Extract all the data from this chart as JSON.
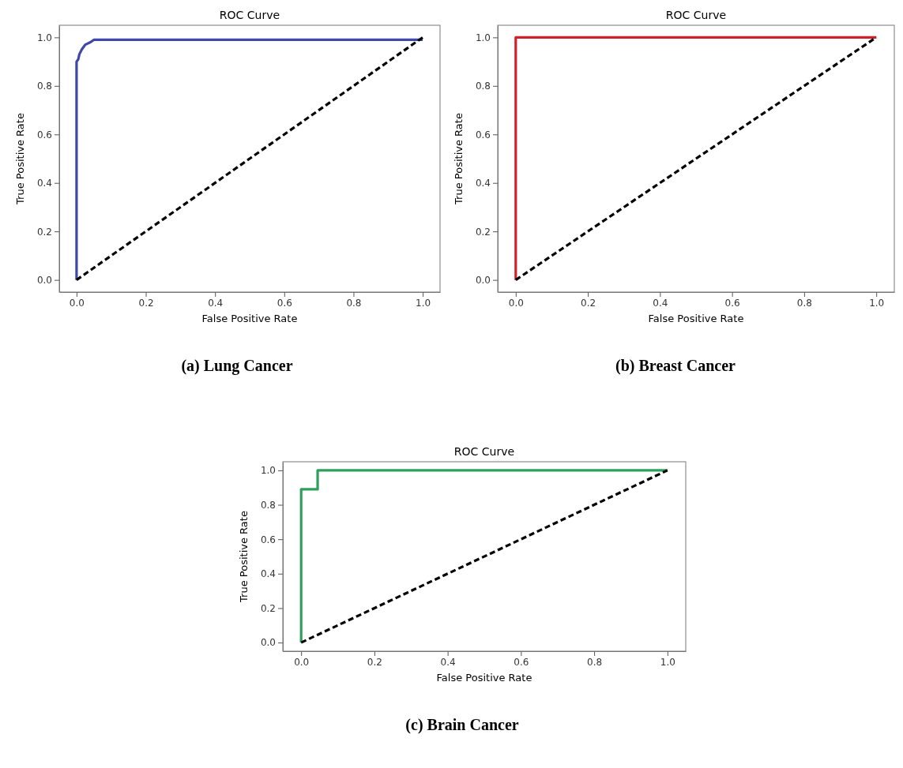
{
  "chart_data": [
    {
      "type": "line",
      "title": "ROC Curve",
      "xlabel": "False Positive Rate",
      "ylabel": "True Positive Rate",
      "xlim": [
        -0.05,
        1.05
      ],
      "ylim": [
        -0.05,
        1.05
      ],
      "xticks": [
        {
          "value": 0,
          "label": "0.0"
        },
        {
          "value": 0.2,
          "label": "0.2"
        },
        {
          "value": 0.4,
          "label": "0.4"
        },
        {
          "value": 0.6,
          "label": "0.6"
        },
        {
          "value": 0.8,
          "label": "0.8"
        },
        {
          "value": 1,
          "label": "1.0"
        }
      ],
      "yticks": [
        {
          "value": 0,
          "label": "0.0"
        },
        {
          "value": 0.2,
          "label": "0.2"
        },
        {
          "value": 0.4,
          "label": "0.4"
        },
        {
          "value": 0.6,
          "label": "0.6"
        },
        {
          "value": 0.8,
          "label": "0.8"
        },
        {
          "value": 1,
          "label": "1.0"
        }
      ],
      "grid": false,
      "annotations": [
        "(a) Lung Cancer"
      ],
      "series": [
        {
          "color": "#3f48a8",
          "line_style": "solid",
          "x": [
            0,
            0,
            0.005,
            0.008,
            0.015,
            0.025,
            0.04,
            0.05,
            1
          ],
          "values": [
            0,
            0.9,
            0.91,
            0.93,
            0.95,
            0.97,
            0.98,
            0.99,
            0.99
          ]
        },
        {
          "color": "#000000",
          "line_style": "dashed",
          "x": [
            0,
            1
          ],
          "values": [
            0,
            1
          ]
        }
      ]
    },
    {
      "type": "line",
      "title": "ROC Curve",
      "xlabel": "False Positive Rate",
      "ylabel": "True Positive Rate",
      "xlim": [
        -0.05,
        1.05
      ],
      "ylim": [
        -0.05,
        1.05
      ],
      "xticks": [
        {
          "value": 0,
          "label": "0.0"
        },
        {
          "value": 0.2,
          "label": "0.2"
        },
        {
          "value": 0.4,
          "label": "0.4"
        },
        {
          "value": 0.6,
          "label": "0.6"
        },
        {
          "value": 0.8,
          "label": "0.8"
        },
        {
          "value": 1,
          "label": "1.0"
        }
      ],
      "yticks": [
        {
          "value": 0,
          "label": "0.0"
        },
        {
          "value": 0.2,
          "label": "0.2"
        },
        {
          "value": 0.4,
          "label": "0.4"
        },
        {
          "value": 0.6,
          "label": "0.6"
        },
        {
          "value": 0.8,
          "label": "0.8"
        },
        {
          "value": 1,
          "label": "1.0"
        }
      ],
      "grid": false,
      "annotations": [
        "(b) Breast Cancer"
      ],
      "series": [
        {
          "color": "#d0202a",
          "line_style": "solid",
          "x": [
            0,
            0,
            1
          ],
          "values": [
            0,
            1,
            1
          ]
        },
        {
          "color": "#000000",
          "line_style": "dashed",
          "x": [
            0,
            1
          ],
          "values": [
            0,
            1
          ]
        }
      ]
    },
    {
      "type": "line",
      "title": "ROC Curve",
      "xlabel": "False Positive Rate",
      "ylabel": "True Positive Rate",
      "xlim": [
        -0.05,
        1.05
      ],
      "ylim": [
        -0.05,
        1.05
      ],
      "xticks": [
        {
          "value": 0,
          "label": "0.0"
        },
        {
          "value": 0.2,
          "label": "0.2"
        },
        {
          "value": 0.4,
          "label": "0.4"
        },
        {
          "value": 0.6,
          "label": "0.6"
        },
        {
          "value": 0.8,
          "label": "0.8"
        },
        {
          "value": 1,
          "label": "1.0"
        }
      ],
      "yticks": [
        {
          "value": 0,
          "label": "0.0"
        },
        {
          "value": 0.2,
          "label": "0.2"
        },
        {
          "value": 0.4,
          "label": "0.4"
        },
        {
          "value": 0.6,
          "label": "0.6"
        },
        {
          "value": 0.8,
          "label": "0.8"
        },
        {
          "value": 1,
          "label": "1.0"
        }
      ],
      "grid": false,
      "annotations": [
        "(c) Brain Cancer"
      ],
      "series": [
        {
          "color": "#2ca05a",
          "line_style": "solid",
          "x": [
            0,
            0,
            0.045,
            0.045,
            1
          ],
          "values": [
            0,
            0.89,
            0.89,
            1,
            1
          ]
        },
        {
          "color": "#000000",
          "line_style": "dashed",
          "x": [
            0,
            1
          ],
          "values": [
            0,
            1
          ]
        }
      ]
    }
  ]
}
